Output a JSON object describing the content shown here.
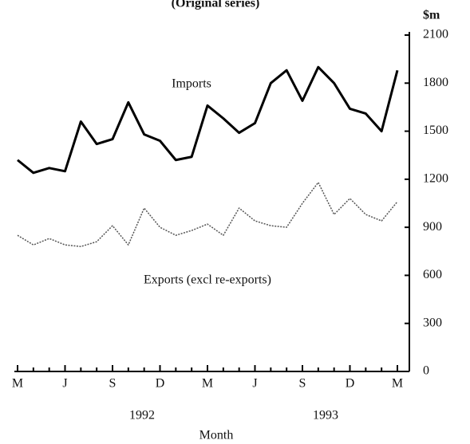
{
  "chart_data": {
    "type": "line",
    "title": "(Original series)",
    "y_unit": "$m",
    "x_label": "Month",
    "year_labels": [
      "1992",
      "1993"
    ],
    "categories": [
      "M",
      null,
      null,
      "J",
      null,
      null,
      "S",
      null,
      null,
      "D",
      null,
      null,
      "M",
      null,
      null,
      "J",
      null,
      null,
      "S",
      null,
      null,
      "D",
      null,
      null,
      "M"
    ],
    "series": [
      {
        "name": "Imports",
        "color": "#000000",
        "values": [
          1320,
          1240,
          1270,
          1250,
          1560,
          1420,
          1450,
          1680,
          1480,
          1440,
          1320,
          1340,
          1660,
          1580,
          1490,
          1550,
          1800,
          1880,
          1690,
          1900,
          1800,
          1640,
          1610,
          1500,
          1880
        ]
      },
      {
        "name": "Exports (excl re-exports)",
        "color": "#555555",
        "values": [
          850,
          790,
          830,
          790,
          780,
          810,
          910,
          790,
          1020,
          900,
          850,
          880,
          920,
          850,
          1020,
          940,
          910,
          900,
          1050,
          1180,
          980,
          1080,
          980,
          940,
          1060
        ]
      }
    ],
    "ylim": [
      0,
      2100
    ],
    "yticks": [
      0,
      300,
      600,
      900,
      1200,
      1500,
      1800,
      2100
    ]
  }
}
